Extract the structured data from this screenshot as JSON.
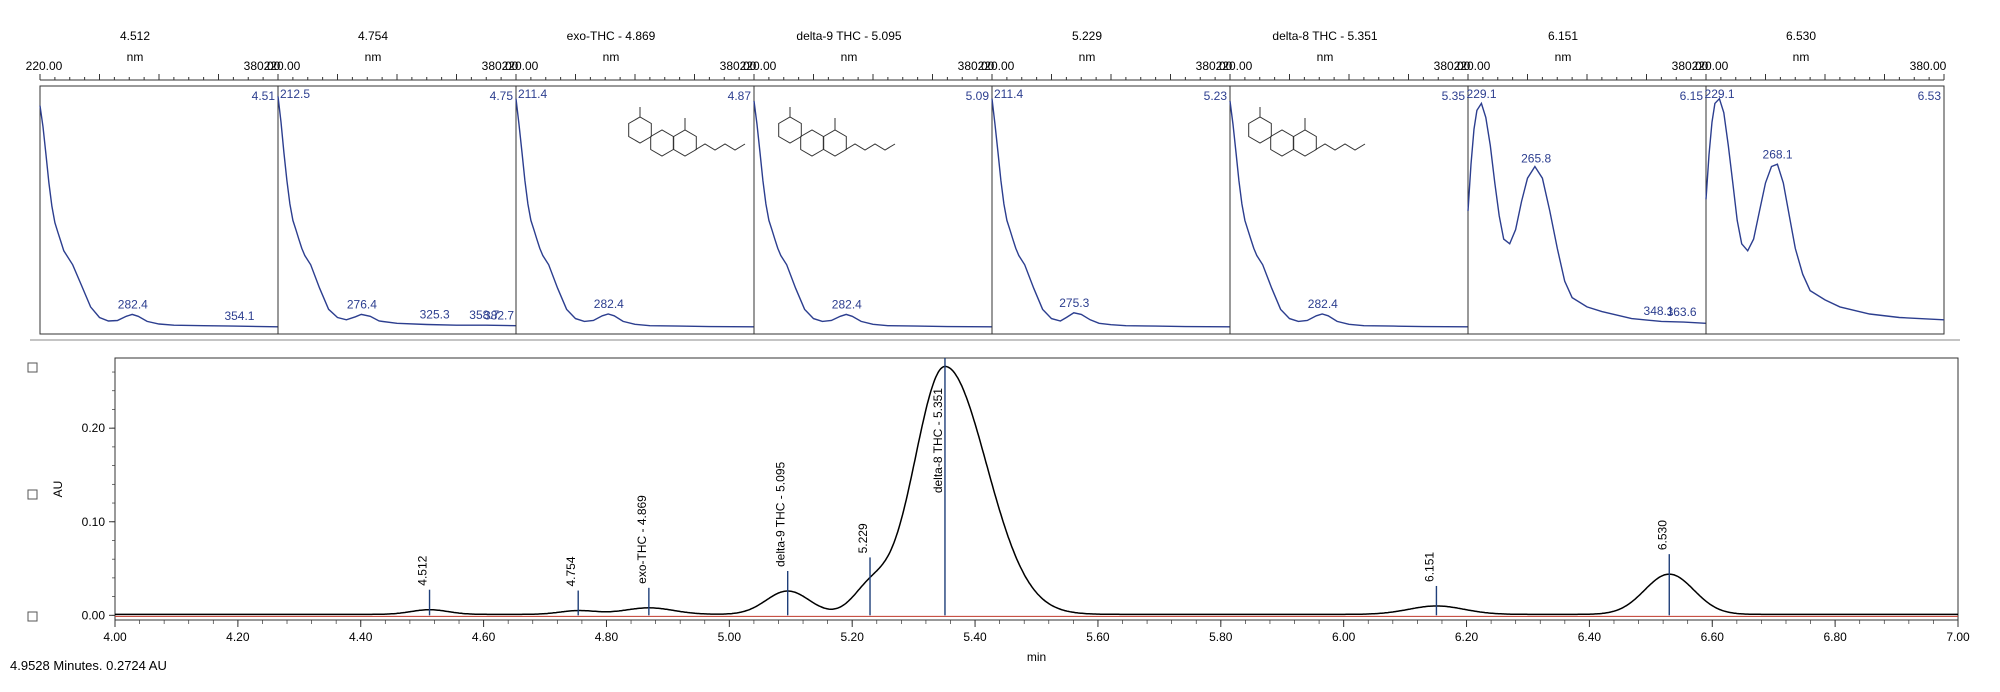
{
  "chart_data": [
    {
      "type": "line",
      "panel": "uv-spectra",
      "x_range": [
        220.0,
        380.0
      ],
      "x_tick_labels": [
        "220.00",
        "380.00"
      ],
      "spectra": [
        {
          "title": "4.512",
          "unit": "nm",
          "retention": "4.51",
          "peak_labels": [
            {
              "text": "282.4",
              "x": 282.4
            },
            {
              "text": "354.1",
              "x": 354.1
            }
          ],
          "x": [
            220,
            222,
            224,
            226,
            228,
            230,
            232,
            234,
            236,
            238,
            242,
            248,
            254,
            260,
            266,
            272,
            278,
            282,
            286,
            292,
            300,
            310,
            330,
            350,
            380
          ],
          "y": [
            0.95,
            0.86,
            0.74,
            0.62,
            0.52,
            0.45,
            0.41,
            0.37,
            0.33,
            0.31,
            0.27,
            0.18,
            0.09,
            0.045,
            0.03,
            0.032,
            0.05,
            0.058,
            0.05,
            0.028,
            0.017,
            0.012,
            0.01,
            0.008,
            0.005
          ]
        },
        {
          "title": "4.754",
          "unit": "nm",
          "retention": "4.75",
          "peak_labels": [
            {
              "text": "212.5",
              "x": 220.0
            },
            {
              "text": "276.4",
              "x": 276.4
            },
            {
              "text": "325.3",
              "x": 325.3
            },
            {
              "text": "358.7",
              "x": 358.7
            },
            {
              "text": "382.7",
              "x": 380.0
            }
          ],
          "x": [
            220,
            222,
            224,
            226,
            228,
            230,
            232,
            234,
            236,
            238,
            242,
            248,
            254,
            260,
            266,
            272,
            276,
            282,
            288,
            300,
            320,
            340,
            360,
            380
          ],
          "y": [
            0.99,
            0.88,
            0.75,
            0.63,
            0.53,
            0.46,
            0.42,
            0.38,
            0.34,
            0.31,
            0.27,
            0.17,
            0.08,
            0.045,
            0.035,
            0.048,
            0.058,
            0.05,
            0.03,
            0.02,
            0.015,
            0.012,
            0.012,
            0.01
          ]
        },
        {
          "title": "exo-THC - 4.869",
          "unit": "nm",
          "retention": "4.87",
          "peak_labels": [
            {
              "text": "211.4",
              "x": 220.0
            },
            {
              "text": "282.4",
              "x": 282.4
            }
          ],
          "x": [
            220,
            222,
            224,
            226,
            228,
            230,
            232,
            234,
            236,
            238,
            242,
            248,
            254,
            260,
            266,
            272,
            278,
            282,
            286,
            292,
            300,
            310,
            330,
            350,
            380
          ],
          "y": [
            0.98,
            0.87,
            0.75,
            0.63,
            0.53,
            0.46,
            0.42,
            0.38,
            0.34,
            0.31,
            0.27,
            0.17,
            0.08,
            0.04,
            0.028,
            0.032,
            0.052,
            0.06,
            0.052,
            0.028,
            0.016,
            0.01,
            0.008,
            0.006,
            0.005
          ]
        },
        {
          "title": "delta-9 THC - 5.095",
          "unit": "nm",
          "retention": "5.09",
          "peak_labels": [
            {
              "text": "282.4",
              "x": 282.4
            }
          ],
          "x": [
            220,
            222,
            224,
            226,
            228,
            230,
            232,
            234,
            236,
            238,
            242,
            248,
            254,
            260,
            266,
            272,
            278,
            282,
            286,
            292,
            300,
            310,
            330,
            350,
            380
          ],
          "y": [
            0.97,
            0.87,
            0.75,
            0.63,
            0.53,
            0.46,
            0.42,
            0.38,
            0.34,
            0.31,
            0.27,
            0.17,
            0.08,
            0.04,
            0.028,
            0.032,
            0.05,
            0.058,
            0.05,
            0.028,
            0.016,
            0.01,
            0.008,
            0.006,
            0.005
          ]
        },
        {
          "title": "5.229",
          "unit": "nm",
          "retention": "5.23",
          "peak_labels": [
            {
              "text": "211.4",
              "x": 220.0
            },
            {
              "text": "275.3",
              "x": 275.3
            }
          ],
          "x": [
            220,
            222,
            224,
            226,
            228,
            230,
            232,
            234,
            236,
            238,
            242,
            248,
            254,
            260,
            266,
            270,
            275,
            280,
            286,
            292,
            300,
            310,
            330,
            350,
            380
          ],
          "y": [
            0.98,
            0.87,
            0.75,
            0.63,
            0.53,
            0.46,
            0.42,
            0.38,
            0.34,
            0.31,
            0.27,
            0.17,
            0.08,
            0.04,
            0.03,
            0.045,
            0.065,
            0.058,
            0.035,
            0.02,
            0.014,
            0.01,
            0.008,
            0.006,
            0.005
          ]
        },
        {
          "title": "delta-8 THC - 5.351",
          "unit": "nm",
          "retention": "5.35",
          "peak_labels": [
            {
              "text": "282.4",
              "x": 282.4
            }
          ],
          "x": [
            220,
            222,
            224,
            226,
            228,
            230,
            232,
            234,
            236,
            238,
            242,
            248,
            254,
            260,
            266,
            272,
            278,
            282,
            286,
            292,
            300,
            310,
            330,
            350,
            380
          ],
          "y": [
            0.97,
            0.87,
            0.75,
            0.63,
            0.53,
            0.46,
            0.42,
            0.38,
            0.34,
            0.31,
            0.27,
            0.17,
            0.08,
            0.04,
            0.028,
            0.032,
            0.052,
            0.06,
            0.052,
            0.028,
            0.016,
            0.01,
            0.008,
            0.006,
            0.005
          ]
        },
        {
          "title": "6.151",
          "unit": "nm",
          "retention": "6.15",
          "peak_labels": [
            {
              "text": "229.1",
              "x": 229.1
            },
            {
              "text": "265.8",
              "x": 265.8
            },
            {
              "text": "348.1",
              "x": 348.1
            },
            {
              "text": "363.6",
              "x": 363.6
            }
          ],
          "x": [
            220,
            222,
            224,
            226,
            229,
            232,
            235,
            238,
            241,
            244,
            248,
            252,
            256,
            260,
            265,
            270,
            275,
            280,
            285,
            290,
            300,
            310,
            330,
            350,
            365,
            380
          ],
          "y": [
            0.5,
            0.7,
            0.85,
            0.93,
            0.96,
            0.9,
            0.78,
            0.62,
            0.48,
            0.38,
            0.36,
            0.42,
            0.54,
            0.64,
            0.69,
            0.64,
            0.5,
            0.34,
            0.2,
            0.13,
            0.09,
            0.07,
            0.04,
            0.028,
            0.025,
            0.02
          ]
        },
        {
          "title": "6.530",
          "unit": "nm",
          "retention": "6.53",
          "peak_labels": [
            {
              "text": "229.1",
              "x": 229.1
            },
            {
              "text": "268.1",
              "x": 268.1
            }
          ],
          "x": [
            220,
            222,
            224,
            226,
            229,
            232,
            235,
            238,
            241,
            244,
            248,
            252,
            256,
            260,
            264,
            268,
            272,
            276,
            280,
            285,
            290,
            300,
            310,
            330,
            350,
            380
          ],
          "y": [
            0.55,
            0.74,
            0.88,
            0.96,
            0.98,
            0.92,
            0.78,
            0.62,
            0.46,
            0.36,
            0.33,
            0.38,
            0.5,
            0.62,
            0.69,
            0.7,
            0.62,
            0.48,
            0.34,
            0.23,
            0.16,
            0.12,
            0.09,
            0.06,
            0.045,
            0.035
          ]
        }
      ]
    },
    {
      "type": "line",
      "panel": "chromatogram",
      "xlabel": "min",
      "ylabel": "AU",
      "xlim": [
        4.0,
        7.0
      ],
      "ylim": [
        -0.005,
        0.275
      ],
      "x_ticks": [
        "4.00",
        "4.20",
        "4.40",
        "4.60",
        "4.80",
        "5.00",
        "5.20",
        "5.40",
        "5.60",
        "5.80",
        "6.00",
        "6.20",
        "6.40",
        "6.60",
        "6.80",
        "7.00"
      ],
      "y_ticks": [
        "0.00",
        "0.10",
        "0.20"
      ],
      "peaks": [
        {
          "label": "4.512",
          "rt": 4.512,
          "height": 0.005,
          "width": 0.03
        },
        {
          "label": "4.754",
          "rt": 4.754,
          "height": 0.004,
          "width": 0.03
        },
        {
          "label": "exo-THC - 4.869",
          "rt": 4.869,
          "height": 0.007,
          "width": 0.04
        },
        {
          "label": "delta-9 THC - 5.095",
          "rt": 5.095,
          "height": 0.025,
          "width": 0.035
        },
        {
          "label": "5.229",
          "rt": 5.229,
          "height": 0.026,
          "width": 0.028
        },
        {
          "label": "delta-8 THC - 5.351",
          "rt": 5.351,
          "height": 0.265,
          "width": 0.05
        },
        {
          "label": "6.151",
          "rt": 6.151,
          "height": 0.009,
          "width": 0.045
        },
        {
          "label": "6.530",
          "rt": 6.53,
          "height": 0.043,
          "width": 0.04
        }
      ],
      "baseline_color": "#c0392b",
      "trace_color": "#000000",
      "marker_color": "#1f3f7a"
    }
  ],
  "status_text": "4.9528 Minutes. 0.2724 AU",
  "colors": {
    "spectrum_line": "#2c3e8f",
    "spectrum_label": "#2c3e8f",
    "axis": "#333333"
  }
}
